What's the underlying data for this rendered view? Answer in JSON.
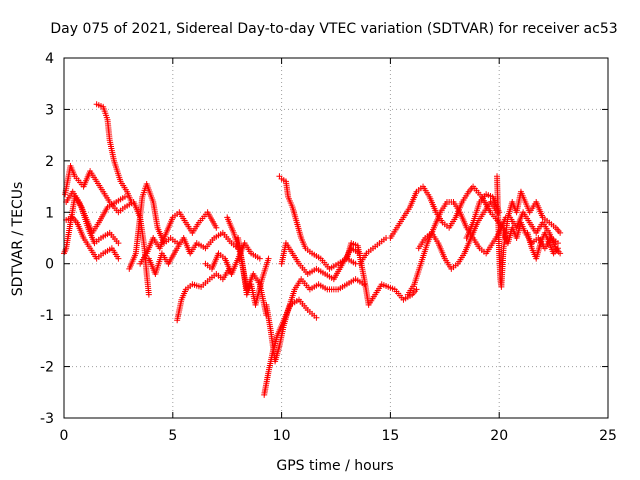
{
  "chart_data": {
    "type": "scatter",
    "title": "Day 075 of 2021, Sidereal Day-to-day VTEC variation (SDTVAR) for receiver ac53",
    "xlabel": "GPS time / hours",
    "ylabel": "SDTVAR / TECUs",
    "xlim": [
      0,
      25
    ],
    "ylim": [
      -3,
      4
    ],
    "xticks": [
      0,
      5,
      10,
      15,
      20,
      25
    ],
    "yticks": [
      -3,
      -2,
      -1,
      0,
      1,
      2,
      3,
      4
    ],
    "grid": true,
    "marker": "+",
    "series": [
      {
        "name": "SDTVAR",
        "color": "#ff0000",
        "tracks": [
          [
            [
              0.05,
              1.35
            ],
            [
              0.3,
              1.9
            ],
            [
              0.5,
              1.7
            ],
            [
              0.9,
              1.5
            ],
            [
              1.2,
              1.8
            ],
            [
              1.5,
              1.6
            ],
            [
              1.8,
              1.4
            ],
            [
              2.1,
              1.2
            ],
            [
              2.5,
              1.0
            ],
            [
              2.8,
              1.1
            ],
            [
              3.2,
              1.2
            ],
            [
              3.5,
              0.9
            ],
            [
              3.7,
              0.3
            ],
            [
              3.8,
              -0.2
            ],
            [
              3.9,
              -0.6
            ]
          ],
          [
            [
              0.1,
              1.2
            ],
            [
              0.4,
              1.4
            ],
            [
              0.7,
              1.2
            ],
            [
              1.0,
              0.9
            ],
            [
              1.3,
              0.6
            ],
            [
              1.6,
              0.8
            ],
            [
              2.0,
              1.1
            ],
            [
              2.4,
              1.2
            ],
            [
              2.8,
              1.3
            ]
          ],
          [
            [
              0.1,
              0.85
            ],
            [
              0.4,
              0.9
            ],
            [
              0.6,
              0.8
            ],
            [
              0.9,
              0.5
            ],
            [
              1.2,
              0.3
            ],
            [
              1.5,
              0.1
            ],
            [
              1.8,
              0.2
            ],
            [
              2.2,
              0.3
            ],
            [
              2.5,
              0.1
            ]
          ],
          [
            [
              0.0,
              0.2
            ],
            [
              0.1,
              0.3
            ],
            [
              0.3,
              0.8
            ],
            [
              0.5,
              1.3
            ],
            [
              0.8,
              1.1
            ],
            [
              1.1,
              0.7
            ],
            [
              1.4,
              0.4
            ],
            [
              1.7,
              0.5
            ],
            [
              2.1,
              0.6
            ],
            [
              2.5,
              0.4
            ]
          ],
          [
            [
              1.5,
              3.1
            ],
            [
              1.8,
              3.05
            ],
            [
              2.0,
              2.8
            ],
            [
              2.1,
              2.4
            ],
            [
              2.3,
              2.0
            ],
            [
              2.6,
              1.6
            ],
            [
              2.9,
              1.4
            ],
            [
              3.1,
              1.2
            ]
          ],
          [
            [
              3.0,
              -0.1
            ],
            [
              3.3,
              0.2
            ],
            [
              3.6,
              1.3
            ],
            [
              3.8,
              1.55
            ],
            [
              4.1,
              1.2
            ],
            [
              4.3,
              0.7
            ],
            [
              4.6,
              0.4
            ],
            [
              4.9,
              0.5
            ],
            [
              5.2,
              0.4
            ]
          ],
          [
            [
              3.5,
              0.0
            ],
            [
              3.8,
              0.2
            ],
            [
              4.1,
              0.5
            ],
            [
              4.4,
              0.3
            ],
            [
              4.7,
              0.6
            ],
            [
              5.0,
              0.9
            ],
            [
              5.3,
              1.0
            ],
            [
              5.6,
              0.8
            ],
            [
              5.9,
              0.6
            ],
            [
              6.2,
              0.8
            ],
            [
              6.6,
              1.0
            ],
            [
              7.0,
              0.7
            ]
          ],
          [
            [
              3.9,
              0.1
            ],
            [
              4.2,
              -0.2
            ],
            [
              4.5,
              0.2
            ],
            [
              4.8,
              0.0
            ],
            [
              5.2,
              0.3
            ],
            [
              5.5,
              0.5
            ],
            [
              5.8,
              0.2
            ],
            [
              6.1,
              0.4
            ],
            [
              6.5,
              0.3
            ],
            [
              6.9,
              0.5
            ],
            [
              7.3,
              0.6
            ],
            [
              7.7,
              0.4
            ],
            [
              8.0,
              0.3
            ]
          ],
          [
            [
              5.2,
              -1.1
            ],
            [
              5.4,
              -0.7
            ],
            [
              5.6,
              -0.5
            ],
            [
              5.9,
              -0.4
            ],
            [
              6.3,
              -0.45
            ],
            [
              6.7,
              -0.3
            ],
            [
              7.0,
              -0.2
            ],
            [
              7.3,
              -0.3
            ],
            [
              7.6,
              -0.1
            ]
          ],
          [
            [
              6.5,
              0.0
            ],
            [
              6.8,
              -0.1
            ],
            [
              7.1,
              0.2
            ],
            [
              7.4,
              0.1
            ],
            [
              7.7,
              -0.2
            ],
            [
              8.0,
              0.1
            ],
            [
              8.3,
              0.4
            ],
            [
              8.6,
              0.2
            ],
            [
              9.0,
              0.1
            ]
          ],
          [
            [
              7.5,
              0.9
            ],
            [
              7.8,
              0.6
            ],
            [
              8.1,
              0.2
            ],
            [
              8.4,
              -0.5
            ],
            [
              8.7,
              -0.2
            ],
            [
              9.0,
              -0.4
            ],
            [
              9.3,
              -1.0
            ]
          ],
          [
            [
              8.0,
              0.5
            ],
            [
              8.2,
              0.0
            ],
            [
              8.4,
              -0.6
            ],
            [
              8.6,
              -0.4
            ],
            [
              8.8,
              -0.8
            ],
            [
              9.1,
              -0.3
            ],
            [
              9.4,
              0.1
            ]
          ],
          [
            [
              9.2,
              -2.55
            ],
            [
              9.4,
              -2.1
            ],
            [
              9.6,
              -1.7
            ],
            [
              9.8,
              -1.4
            ],
            [
              10.1,
              -1.1
            ],
            [
              10.4,
              -0.8
            ],
            [
              10.8,
              -0.7
            ],
            [
              11.2,
              -0.9
            ],
            [
              11.6,
              -1.05
            ]
          ],
          [
            [
              9.3,
              -0.8
            ],
            [
              9.5,
              -1.3
            ],
            [
              9.7,
              -1.9
            ],
            [
              9.9,
              -1.6
            ],
            [
              10.1,
              -1.2
            ],
            [
              10.3,
              -0.9
            ],
            [
              10.6,
              -0.5
            ],
            [
              10.9,
              -0.3
            ],
            [
              11.3,
              -0.5
            ],
            [
              11.7,
              -0.4
            ],
            [
              12.1,
              -0.5
            ],
            [
              12.6,
              -0.5
            ],
            [
              13.0,
              -0.4
            ],
            [
              13.4,
              -0.3
            ],
            [
              13.8,
              -0.4
            ]
          ],
          [
            [
              9.9,
              1.7
            ],
            [
              10.0,
              1.65
            ],
            [
              10.2,
              1.6
            ],
            [
              10.3,
              1.3
            ],
            [
              10.5,
              1.1
            ],
            [
              10.7,
              0.8
            ],
            [
              10.9,
              0.5
            ],
            [
              11.1,
              0.3
            ],
            [
              11.4,
              0.2
            ],
            [
              11.8,
              0.1
            ],
            [
              12.2,
              -0.1
            ],
            [
              12.6,
              0.0
            ],
            [
              13.0,
              0.1
            ],
            [
              13.4,
              0.0
            ]
          ],
          [
            [
              10.0,
              0.0
            ],
            [
              10.2,
              0.4
            ],
            [
              10.5,
              0.2
            ],
            [
              10.8,
              0.0
            ],
            [
              11.2,
              -0.2
            ],
            [
              11.6,
              -0.1
            ],
            [
              12.0,
              -0.2
            ],
            [
              12.4,
              -0.3
            ],
            [
              12.8,
              0.0
            ],
            [
              13.2,
              0.3
            ],
            [
              13.6,
              0.2
            ]
          ],
          [
            [
              13.0,
              0.1
            ],
            [
              13.2,
              0.4
            ],
            [
              13.5,
              0.35
            ],
            [
              13.8,
              -0.3
            ],
            [
              14.0,
              -0.8
            ],
            [
              14.3,
              -0.6
            ],
            [
              14.6,
              -0.4
            ],
            [
              14.9,
              -0.45
            ],
            [
              15.2,
              -0.5
            ],
            [
              15.6,
              -0.7
            ],
            [
              16.0,
              -0.6
            ],
            [
              16.2,
              -0.5
            ]
          ],
          [
            [
              13.6,
              0.0
            ],
            [
              13.9,
              0.2
            ],
            [
              14.2,
              0.3
            ],
            [
              14.5,
              0.4
            ],
            [
              14.8,
              0.5
            ]
          ],
          [
            [
              15.0,
              0.5
            ],
            [
              15.3,
              0.7
            ],
            [
              15.6,
              0.9
            ],
            [
              15.9,
              1.1
            ],
            [
              16.2,
              1.4
            ],
            [
              16.5,
              1.5
            ],
            [
              16.8,
              1.3
            ],
            [
              17.1,
              1.0
            ],
            [
              17.4,
              0.8
            ],
            [
              17.7,
              0.7
            ],
            [
              18.0,
              0.9
            ],
            [
              18.3,
              1.2
            ],
            [
              18.6,
              1.4
            ],
            [
              18.8,
              1.5
            ],
            [
              19.2,
              1.3
            ],
            [
              19.6,
              1.0
            ],
            [
              20.0,
              0.8
            ],
            [
              20.3,
              0.6
            ]
          ],
          [
            [
              15.8,
              -0.6
            ],
            [
              16.1,
              -0.4
            ],
            [
              16.4,
              0.0
            ],
            [
              16.7,
              0.4
            ],
            [
              17.0,
              0.7
            ],
            [
              17.3,
              1.0
            ],
            [
              17.6,
              1.2
            ],
            [
              17.9,
              1.2
            ],
            [
              18.2,
              1.0
            ],
            [
              18.5,
              0.7
            ],
            [
              18.8,
              0.5
            ],
            [
              19.1,
              0.3
            ],
            [
              19.4,
              0.2
            ],
            [
              19.7,
              0.4
            ],
            [
              20.0,
              0.6
            ],
            [
              20.3,
              0.9
            ]
          ],
          [
            [
              16.3,
              0.3
            ],
            [
              16.6,
              0.5
            ],
            [
              16.9,
              0.6
            ],
            [
              17.2,
              0.4
            ],
            [
              17.5,
              0.1
            ],
            [
              17.8,
              -0.1
            ],
            [
              18.1,
              0.0
            ],
            [
              18.4,
              0.2
            ],
            [
              18.7,
              0.5
            ],
            [
              19.0,
              0.8
            ],
            [
              19.3,
              1.0
            ],
            [
              19.6,
              1.2
            ],
            [
              19.9,
              1.0
            ]
          ],
          [
            [
              18.5,
              0.5
            ],
            [
              18.8,
              0.8
            ],
            [
              19.1,
              1.2
            ],
            [
              19.4,
              1.35
            ],
            [
              19.7,
              1.3
            ],
            [
              20.0,
              1.0
            ]
          ],
          [
            [
              19.9,
              1.7
            ],
            [
              20.0,
              0.2
            ],
            [
              20.05,
              -0.3
            ],
            [
              20.1,
              -0.45
            ],
            [
              20.2,
              0.3
            ],
            [
              20.4,
              0.9
            ],
            [
              20.6,
              1.2
            ],
            [
              20.8,
              1.0
            ],
            [
              21.0,
              1.4
            ],
            [
              21.2,
              1.2
            ],
            [
              21.4,
              1.0
            ],
            [
              21.7,
              1.2
            ],
            [
              22.0,
              0.9
            ],
            [
              22.3,
              0.8
            ],
            [
              22.6,
              0.7
            ],
            [
              22.8,
              0.6
            ]
          ],
          [
            [
              20.2,
              0.6
            ],
            [
              20.4,
              0.4
            ],
            [
              20.6,
              0.7
            ],
            [
              20.8,
              0.5
            ],
            [
              21.0,
              0.8
            ],
            [
              21.2,
              0.6
            ],
            [
              21.5,
              0.4
            ],
            [
              21.8,
              0.5
            ],
            [
              22.1,
              0.3
            ],
            [
              22.4,
              0.5
            ],
            [
              22.7,
              0.4
            ]
          ],
          [
            [
              20.5,
              0.9
            ],
            [
              20.8,
              0.7
            ],
            [
              21.1,
              1.0
            ],
            [
              21.4,
              0.8
            ],
            [
              21.7,
              0.6
            ],
            [
              22.0,
              0.8
            ],
            [
              22.3,
              0.6
            ],
            [
              22.6,
              0.3
            ],
            [
              22.8,
              0.2
            ]
          ],
          [
            [
              21.3,
              0.6
            ],
            [
              21.5,
              0.3
            ],
            [
              21.7,
              0.1
            ],
            [
              21.9,
              0.4
            ],
            [
              22.1,
              0.6
            ],
            [
              22.3,
              0.4
            ],
            [
              22.5,
              0.2
            ],
            [
              22.7,
              0.3
            ]
          ]
        ]
      }
    ]
  }
}
